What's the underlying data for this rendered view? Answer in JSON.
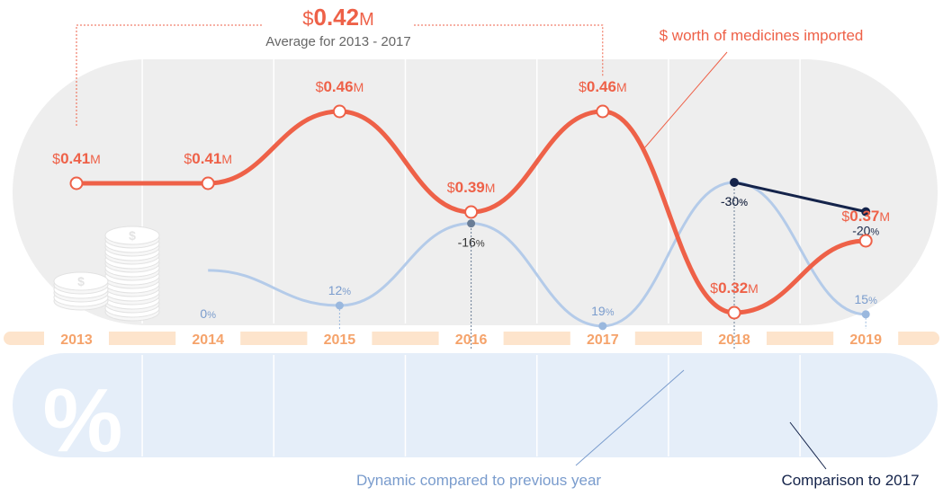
{
  "chart_data": {
    "type": "line",
    "categories": [
      "2013",
      "2014",
      "2015",
      "2016",
      "2017",
      "2018",
      "2019"
    ],
    "series": [
      {
        "name": "$ worth of medicines imported",
        "unit": "$M",
        "values": [
          0.41,
          0.41,
          0.46,
          0.39,
          0.46,
          0.32,
          0.37
        ],
        "labels": [
          "0.41",
          "0.41",
          "0.46",
          "0.39",
          "0.46",
          "0.32",
          "0.37"
        ],
        "color": "#ee6148"
      },
      {
        "name": "Dynamic compared to previous year",
        "unit": "%",
        "values": [
          null,
          0,
          12,
          -16,
          19,
          -30,
          15
        ],
        "labels": [
          "",
          "0",
          "12",
          "-16",
          "19",
          "-30",
          "15"
        ],
        "color": "#8ea6c4"
      },
      {
        "name": "Comparison to 2017",
        "unit": "%",
        "points": [
          {
            "x": "2018",
            "y": -30
          },
          {
            "x": "2019",
            "y": -20
          }
        ],
        "labels": [
          "-30",
          "-20"
        ],
        "color": "#14234a"
      }
    ],
    "average": {
      "prefix": "$",
      "value": "0.42",
      "suffix": "M",
      "label": "Average for 2013 - 2017",
      "from": "2013",
      "to": "2017"
    },
    "legend": {
      "worth": "$ worth of medicines imported",
      "dynamic": "Dynamic compared to previous year",
      "comparison": "Comparison to 2017"
    },
    "percent_symbol": "%",
    "currency_prefix": "$",
    "currency_suffix": "M",
    "percent_suffix": "%",
    "colors": {
      "worth": "#ee6148",
      "dynamic_light": "#b4cbe9",
      "dynamic_dark": "#8a9db5",
      "comparison": "#14234a",
      "year_band": "#fde4cc",
      "year_text": "#f5a36b",
      "top_panel": "#eeeeee",
      "bottom_panel": "#e5eef9",
      "point_blue": "#9ab8de",
      "point_grey": "#6a7d96",
      "dynamic_note": "#7a9ccd",
      "avg_number": "#ee6148",
      "avg_label": "#666666"
    }
  }
}
